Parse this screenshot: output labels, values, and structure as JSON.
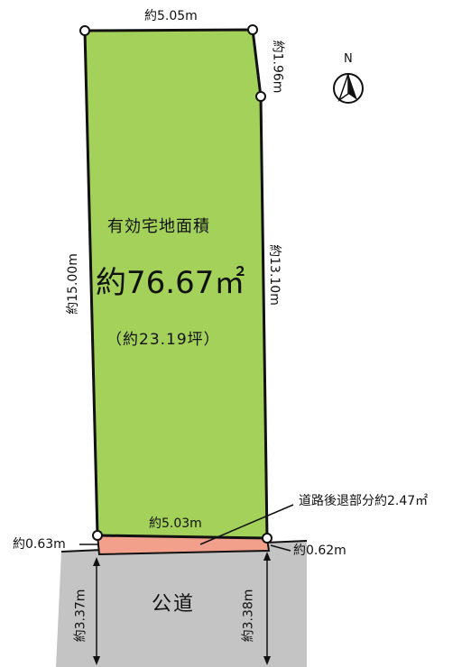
{
  "plot": {
    "top_edge": "約5.05m",
    "right_upper_edge": "約1.96m",
    "left_edge": "約15.00m",
    "right_lower_edge": "約13.10m",
    "bottom_edge": "約5.03m",
    "area_label": "有効宅地面積",
    "area_value": "約76.67㎡",
    "area_tsubo": "（約23.19坪）"
  },
  "setback": {
    "callout": "道路後退部分約2.47㎡",
    "left_width": "約0.63m",
    "right_width": "約0.62m"
  },
  "road": {
    "label": "公道",
    "left_width": "約3.37m",
    "right_width": "約3.38m"
  },
  "compass": {
    "north": "N"
  },
  "colors": {
    "plot_fill": "#a3d15a",
    "setback_fill": "#f2a08c",
    "road_fill": "#c4c4c4",
    "outline": "#111111"
  }
}
